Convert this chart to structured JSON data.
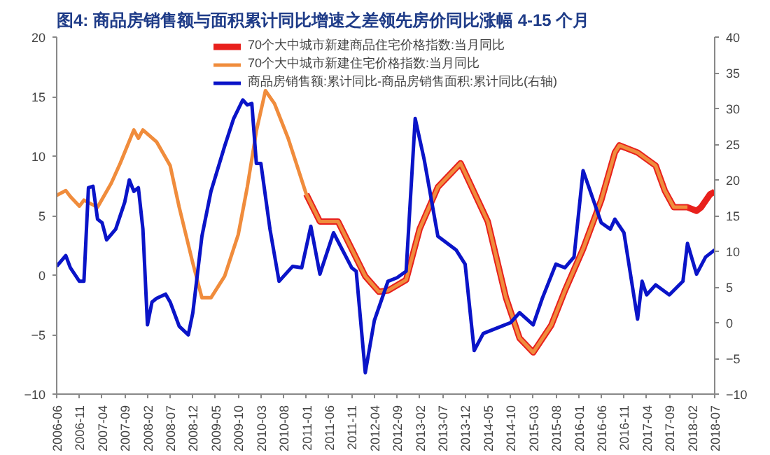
{
  "chart_data": {
    "type": "line",
    "title": "图4:  商品房销售额与面积累计同比增速之差领先房价同比涨幅 4-15 个月",
    "xlim": [
      "2006-06",
      "2018-07"
    ],
    "xticks": [
      "2006-06",
      "2006-11",
      "2007-04",
      "2007-09",
      "2008-02",
      "2008-07",
      "2008-12",
      "2009-05",
      "2009-10",
      "2010-03",
      "2010-08",
      "2011-01",
      "2011-06",
      "2011-11",
      "2012-04",
      "2012-09",
      "2013-02",
      "2013-07",
      "2013-12",
      "2014-05",
      "2014-10",
      "2015-03",
      "2015-08",
      "2016-01",
      "2016-06",
      "2016-11",
      "2017-04",
      "2017-09",
      "2018-02",
      "2018-07"
    ],
    "ylim": [
      -10,
      20
    ],
    "yticks": [
      -10,
      -5,
      0,
      5,
      10,
      15,
      20
    ],
    "y2lim": [
      -10,
      40
    ],
    "y2ticks": [
      -10,
      -5,
      0,
      5,
      10,
      15,
      20,
      25,
      30,
      35,
      40
    ],
    "grid": false,
    "legend": "top",
    "series": [
      {
        "name": "70个大中城市新建商品住宅价格指数:当月同比",
        "color": "#e8201c",
        "x": [
          "2011-01",
          "2011-04",
          "2011-08",
          "2011-11",
          "2012-02",
          "2012-05",
          "2012-07",
          "2012-11",
          "2013-02",
          "2013-06",
          "2013-11",
          "2014-05",
          "2014-09",
          "2014-12",
          "2015-03",
          "2015-07",
          "2015-10",
          "2016-02",
          "2016-06",
          "2016-09",
          "2016-10",
          "2017-02",
          "2017-06",
          "2017-08",
          "2017-10",
          "2018-01",
          "2018-03",
          "2018-04",
          "2018-06",
          "2018-07"
        ],
        "values": [
          6.8,
          4.5,
          4.5,
          2.2,
          -0.1,
          -1.4,
          -1.3,
          -0.4,
          3.9,
          7.4,
          9.4,
          4.5,
          -1.9,
          -5.3,
          -6.5,
          -4.2,
          -1.3,
          2.2,
          6.3,
          10.3,
          10.9,
          10.3,
          9.2,
          7.1,
          5.7,
          5.7,
          5.4,
          5.7,
          6.8,
          7.0
        ]
      },
      {
        "name": "70个大中城市新建住宅价格指数:当月同比",
        "color": "#f08c3c",
        "x": [
          "2006-06",
          "2006-08",
          "2006-09",
          "2006-11",
          "2006-12",
          "2007-03",
          "2007-06",
          "2007-08",
          "2007-11",
          "2007-12",
          "2008-01",
          "2008-04",
          "2008-07",
          "2008-09",
          "2008-12",
          "2009-02",
          "2009-04",
          "2009-07",
          "2009-10",
          "2009-12",
          "2010-02",
          "2010-04",
          "2010-06",
          "2010-09",
          "2011-01",
          "2011-04",
          "2011-08",
          "2011-11",
          "2012-02",
          "2012-05",
          "2012-07",
          "2012-11",
          "2013-02",
          "2013-06",
          "2013-11",
          "2014-05",
          "2014-09",
          "2014-12",
          "2015-03",
          "2015-07",
          "2015-10",
          "2016-02",
          "2016-06",
          "2016-09",
          "2016-10",
          "2017-02",
          "2017-06",
          "2017-08",
          "2017-10",
          "2018-01"
        ],
        "values": [
          6.7,
          7.1,
          6.6,
          5.8,
          6.3,
          5.7,
          7.7,
          9.4,
          12.2,
          11.5,
          12.2,
          11.2,
          9.2,
          5.7,
          1.0,
          -1.9,
          -1.9,
          -0.1,
          3.4,
          7.4,
          12.1,
          15.5,
          14.4,
          11.5,
          6.8,
          4.5,
          4.5,
          2.2,
          -0.1,
          -1.4,
          -1.3,
          -0.4,
          3.9,
          7.4,
          9.4,
          4.5,
          -1.9,
          -5.3,
          -6.5,
          -4.2,
          -1.3,
          2.2,
          6.3,
          10.3,
          10.9,
          10.3,
          9.2,
          7.1,
          5.7,
          5.7
        ]
      },
      {
        "name": "商品房销售额:累计同比-商品房销售面积:累计同比(右轴)",
        "color": "#0a14c8",
        "axis": "y2",
        "x": [
          "2006-06",
          "2006-08",
          "2006-09",
          "2006-11",
          "2006-12",
          "2007-01",
          "2007-02",
          "2007-03",
          "2007-04",
          "2007-05",
          "2007-07",
          "2007-09",
          "2007-10",
          "2007-11",
          "2007-12",
          "2008-01",
          "2008-02",
          "2008-03",
          "2008-04",
          "2008-06",
          "2008-07",
          "2008-09",
          "2008-11",
          "2008-12",
          "2009-02",
          "2009-04",
          "2009-07",
          "2009-09",
          "2009-11",
          "2009-12",
          "2010-01",
          "2010-02",
          "2010-03",
          "2010-05",
          "2010-07",
          "2010-10",
          "2010-12",
          "2011-02",
          "2011-04",
          "2011-07",
          "2011-11",
          "2011-12",
          "2012-02",
          "2012-04",
          "2012-07",
          "2012-09",
          "2012-11",
          "2013-01",
          "2013-03",
          "2013-06",
          "2013-10",
          "2013-12",
          "2014-02",
          "2014-04",
          "2014-08",
          "2014-10",
          "2014-12",
          "2015-03",
          "2015-05",
          "2015-08",
          "2015-10",
          "2015-12",
          "2016-02",
          "2016-06",
          "2016-08",
          "2016-09",
          "2016-11",
          "2017-02",
          "2017-03",
          "2017-04",
          "2017-06",
          "2017-09",
          "2017-12",
          "2018-01",
          "2018-03",
          "2018-05",
          "2018-07"
        ],
        "values": [
          7.9,
          9.4,
          7.7,
          5.8,
          5.8,
          18.9,
          19.1,
          14.5,
          14.0,
          11.6,
          13.1,
          16.9,
          20.0,
          18.4,
          18.9,
          13.1,
          -0.3,
          2.9,
          3.4,
          4.0,
          2.9,
          -0.5,
          -1.7,
          1.4,
          12.1,
          18.4,
          24.7,
          28.6,
          31.2,
          30.5,
          30.7,
          22.3,
          22.3,
          13.1,
          5.8,
          7.9,
          7.7,
          13.5,
          6.8,
          12.6,
          7.7,
          7.2,
          -7.0,
          0.3,
          5.8,
          6.3,
          7.2,
          28.6,
          22.8,
          12.1,
          10.2,
          8.2,
          -3.9,
          -1.5,
          -0.5,
          0.0,
          1.4,
          -0.3,
          3.4,
          8.2,
          7.7,
          9.2,
          21.3,
          14.0,
          13.1,
          14.5,
          12.6,
          0.5,
          5.8,
          3.9,
          5.3,
          3.9,
          5.8,
          11.1,
          6.8,
          9.2,
          10.2
        ]
      }
    ]
  }
}
